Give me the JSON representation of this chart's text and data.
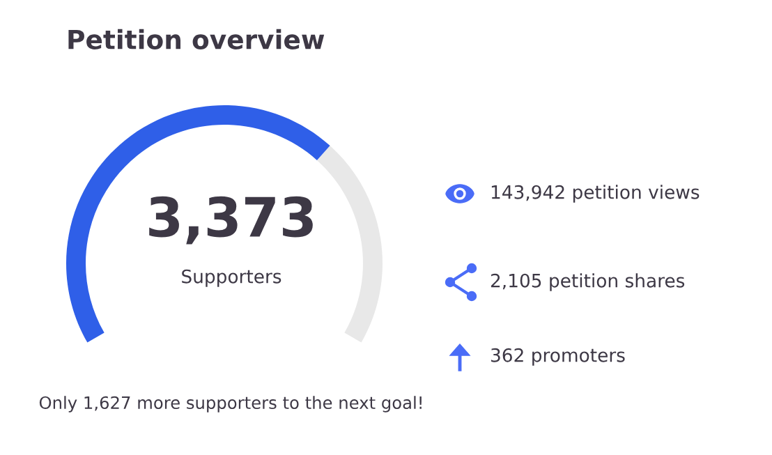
{
  "chart_data": [
    {
      "type": "donut",
      "title": "Petition overview",
      "categories": [
        null,
        null
      ],
      "values": [
        3373,
        1627
      ],
      "colors": [
        "#2f5fe8",
        "#e8e8e8"
      ],
      "value_labels": [
        "3,373",
        null
      ],
      "annotations": [
        "Supporters",
        "Only 1,627 more supporters to the next goal!"
      ]
    },
    {
      "type": "other",
      "annotations": [
        "143,942 petition views",
        "2,105 petition shares",
        "362 promoters"
      ]
    }
  ]
}
